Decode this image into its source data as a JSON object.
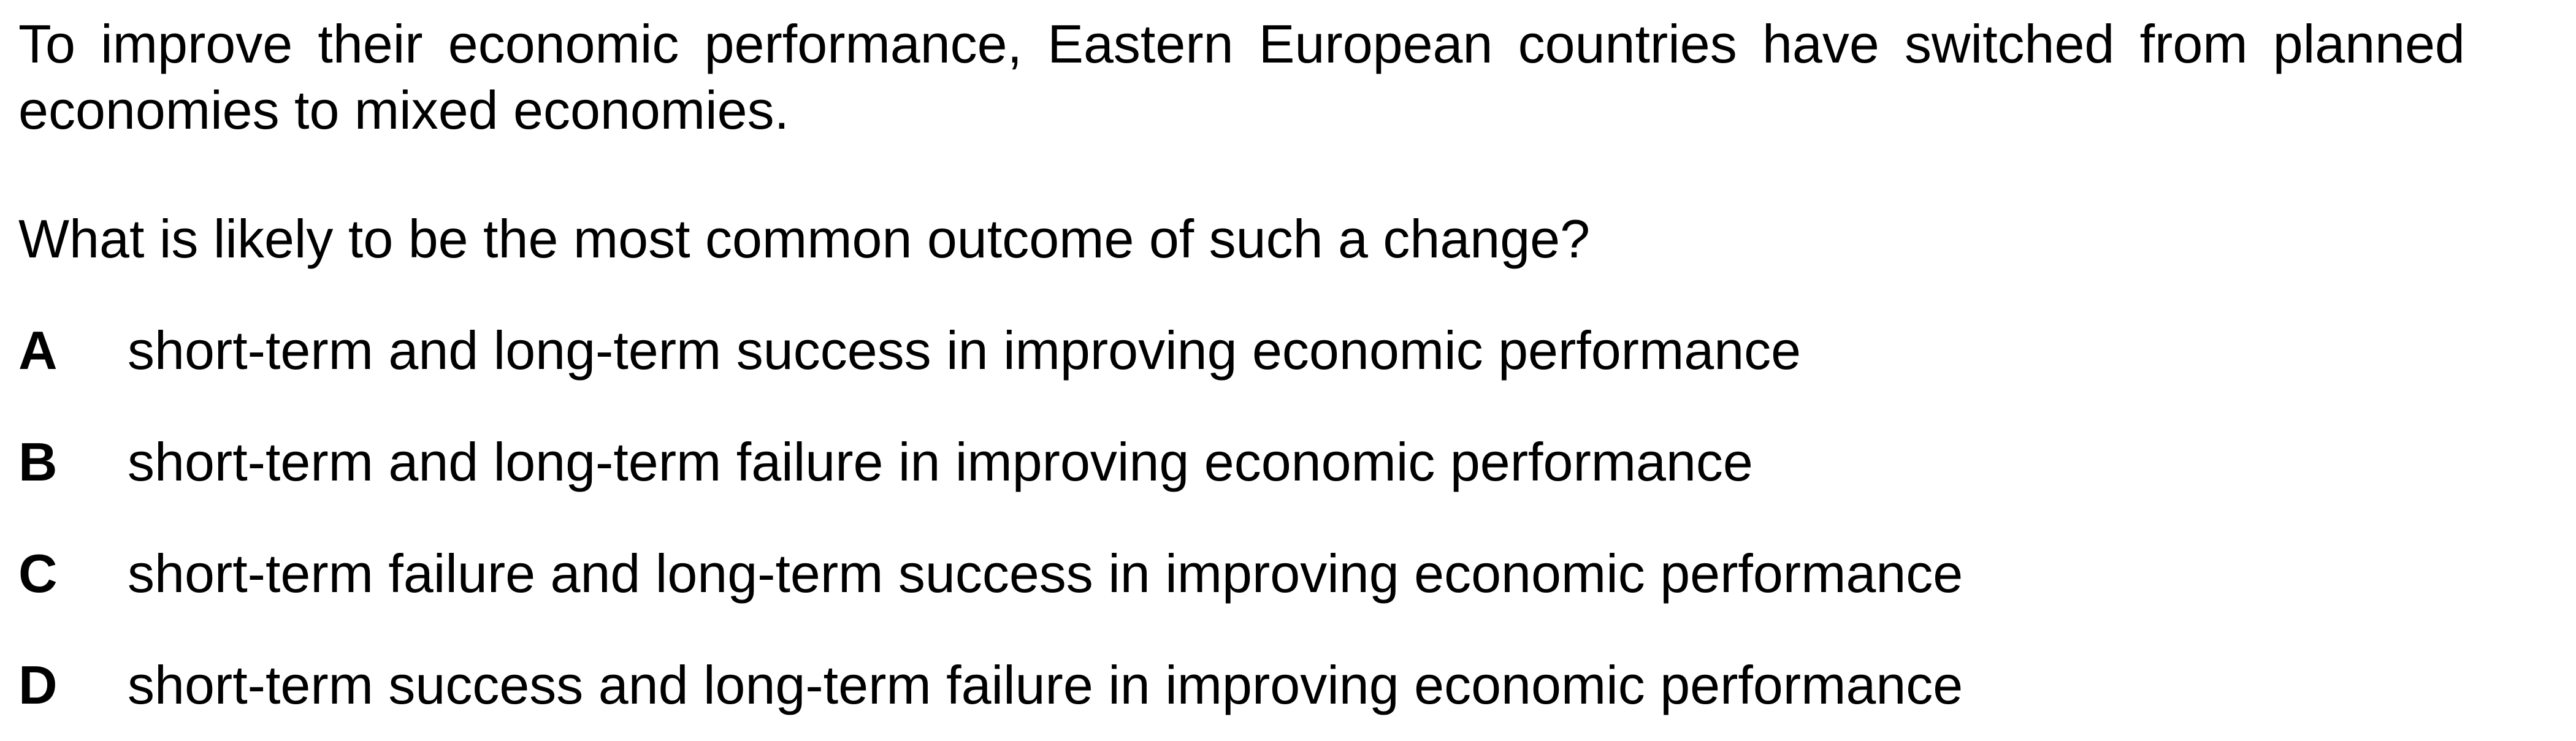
{
  "question": {
    "stem": "To improve their economic performance, Eastern European countries have switched from planned economies to mixed economies.",
    "prompt": "What is likely to be the most common outcome of such a change?",
    "options": [
      {
        "letter": "A",
        "text": "short-term and long-term success in improving economic performance"
      },
      {
        "letter": "B",
        "text": "short-term and long-term failure in improving economic performance"
      },
      {
        "letter": "C",
        "text": "short-term failure and long-term success in improving economic performance"
      },
      {
        "letter": "D",
        "text": "short-term success and long-term failure in improving economic performance"
      }
    ]
  }
}
